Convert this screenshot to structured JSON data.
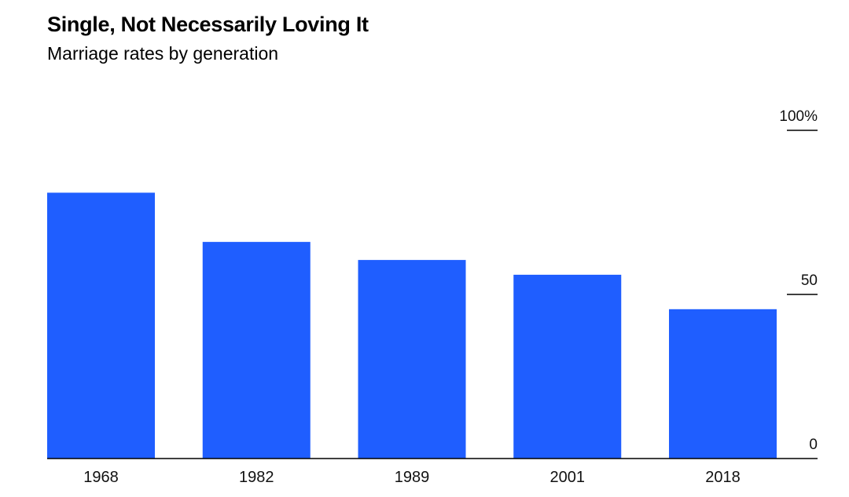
{
  "header": {
    "title": "Single, Not Necessarily Loving It",
    "subtitle": "Marriage rates by generation"
  },
  "chart_data": {
    "type": "bar",
    "title": "Single, Not Necessarily Loving It",
    "subtitle": "Marriage rates by generation",
    "categories": [
      "1968",
      "1982",
      "1989",
      "2001",
      "2018"
    ],
    "values": [
      81,
      66,
      60.5,
      56,
      45.5
    ],
    "ylim": [
      0,
      100
    ],
    "yticks": [
      0,
      50,
      100
    ],
    "ytick_labels": [
      "0",
      "50",
      "100%"
    ],
    "y_axis_side": "right",
    "grid": false,
    "bar_color": "#1f5eff",
    "axis_color": "#000000"
  }
}
